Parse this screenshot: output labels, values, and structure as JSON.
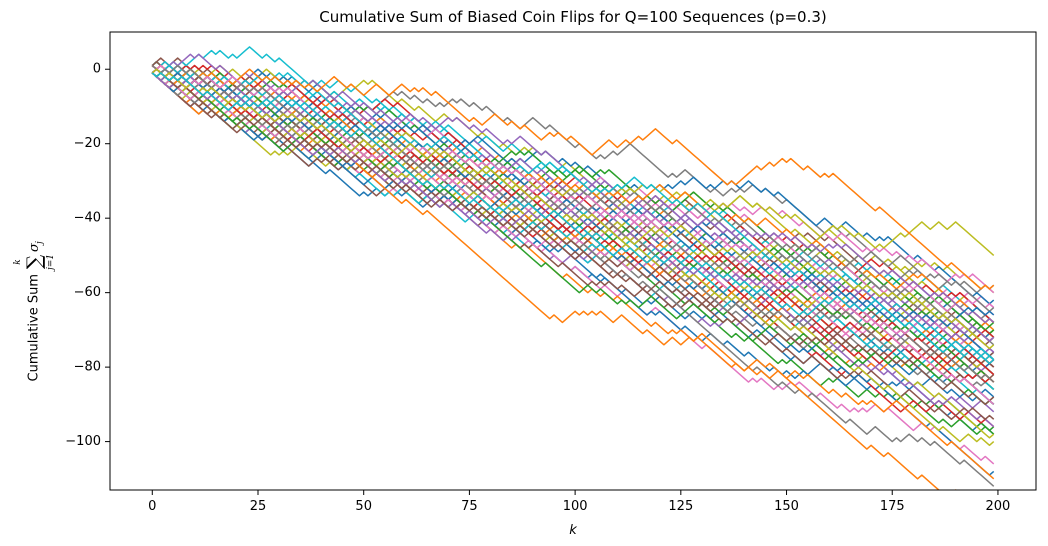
{
  "chart_data": {
    "type": "line",
    "title": "Cumulative Sum of Biased Coin Flips for Q=100 Sequences (p=0.3)",
    "xlabel": "k",
    "ylabel": "Cumulative Sum",
    "ylabel_math": {
      "sum_upper": "k",
      "sum_lower": "j=1",
      "sigma": "σ",
      "sigma_sub": "j"
    },
    "xlim": [
      -10,
      209
    ],
    "ylim": [
      -113,
      10
    ],
    "xticks": [
      0,
      25,
      50,
      75,
      100,
      125,
      150,
      175,
      200
    ],
    "xtick_labels": [
      "0",
      "25",
      "50",
      "75",
      "100",
      "125",
      "150",
      "175",
      "200"
    ],
    "yticks": [
      0,
      -20,
      -40,
      -60,
      -80,
      -100
    ],
    "ytick_labels": [
      "0",
      "−20",
      "−40",
      "−60",
      "−80",
      "−100"
    ],
    "grid": false,
    "legend": false,
    "n_sequences": 100,
    "n_steps": 200,
    "p_up": 0.3,
    "step_values": [
      1,
      -1
    ],
    "random_seed": 7,
    "color_cycle": [
      "#1f77b4",
      "#ff7f0e",
      "#2ca02c",
      "#d62728",
      "#9467bd",
      "#8c564b",
      "#e377c2",
      "#7f7f7f",
      "#bcbd22",
      "#17becf"
    ]
  }
}
